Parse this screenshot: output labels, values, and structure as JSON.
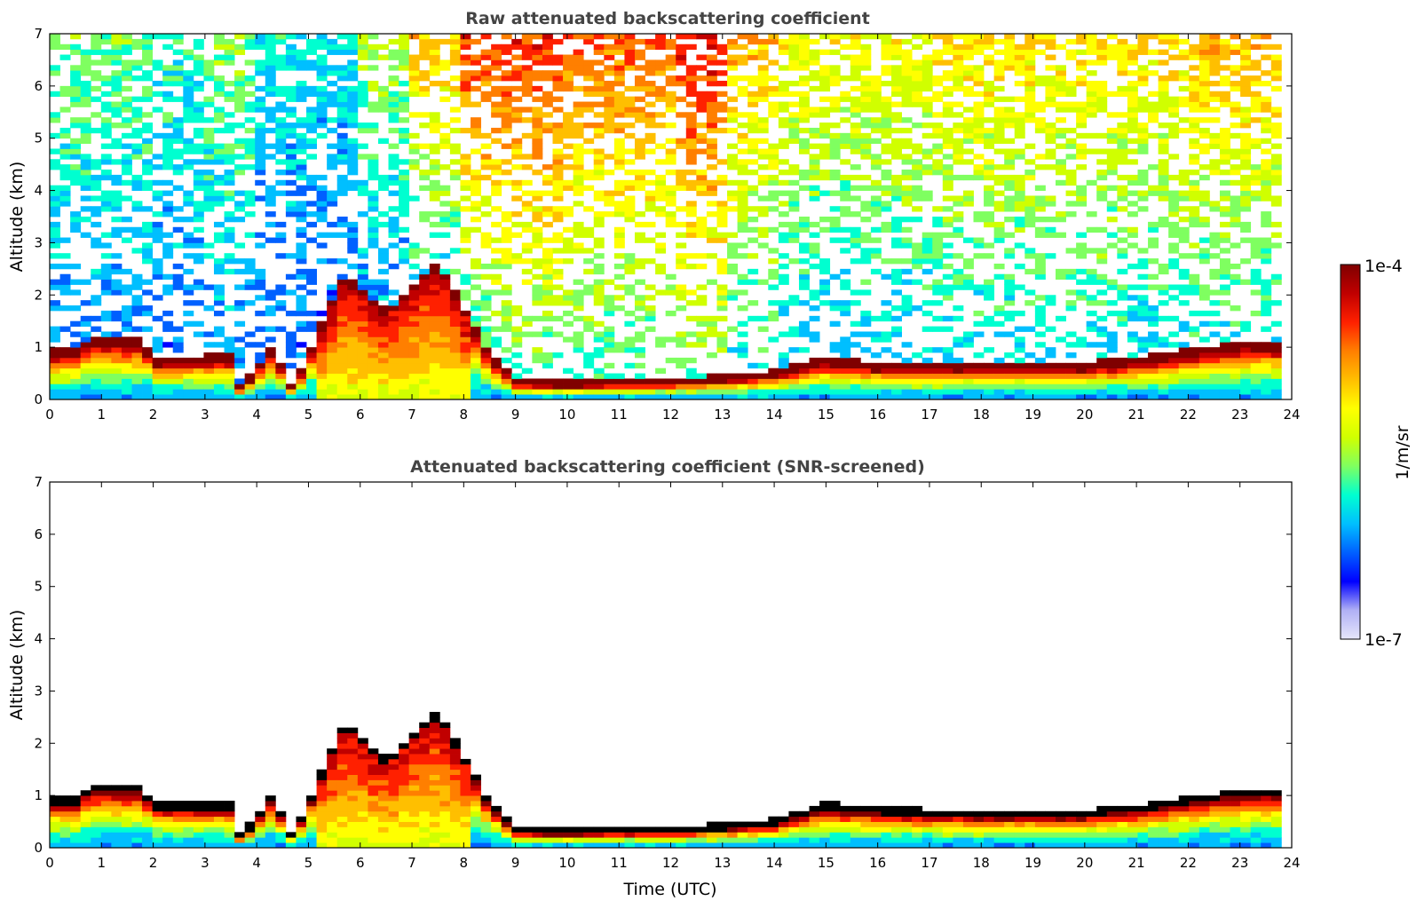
{
  "chart_data": [
    {
      "type": "heatmap",
      "title": "Raw attenuated backscattering coefficient",
      "xlabel": "",
      "ylabel": "Altitude (km)",
      "xlim": [
        0,
        24
      ],
      "ylim": [
        0,
        7
      ],
      "x_ticks": [
        "0",
        "1",
        "2",
        "3",
        "4",
        "5",
        "6",
        "7",
        "8",
        "9",
        "10",
        "11",
        "12",
        "13",
        "14",
        "15",
        "16",
        "17",
        "18",
        "19",
        "20",
        "21",
        "22",
        "23",
        "24"
      ],
      "y_ticks": [
        "0",
        "1",
        "2",
        "3",
        "4",
        "5",
        "6",
        "7"
      ],
      "layer_top_km": [
        [
          0,
          0.85
        ],
        [
          0.5,
          0.85
        ],
        [
          0.8,
          1.1
        ],
        [
          1.8,
          1.05
        ],
        [
          2.0,
          0.7
        ],
        [
          3.5,
          0.75
        ],
        [
          3.7,
          0.1
        ],
        [
          4.3,
          0.95
        ],
        [
          4.7,
          0.15
        ],
        [
          5.7,
          2.3
        ],
        [
          6.5,
          1.6
        ],
        [
          7.5,
          2.5
        ],
        [
          8.5,
          0.8
        ],
        [
          9.0,
          0.3
        ],
        [
          10.0,
          0.25
        ],
        [
          11.0,
          0.3
        ],
        [
          12.0,
          0.3
        ],
        [
          13.0,
          0.35
        ],
        [
          14.0,
          0.45
        ],
        [
          15.0,
          0.7
        ],
        [
          16.0,
          0.6
        ],
        [
          18.0,
          0.6
        ],
        [
          20.0,
          0.6
        ],
        [
          21.0,
          0.7
        ],
        [
          22.0,
          0.85
        ],
        [
          23.0,
          1.0
        ],
        [
          23.8,
          1.0
        ]
      ],
      "noise_level_by_hour": [
        0.35,
        0.35,
        0.3,
        0.35,
        0.25,
        0.25,
        0.4,
        0.6,
        0.75,
        0.75,
        0.7,
        0.7,
        0.8,
        0.6,
        0.5,
        0.5,
        0.5,
        0.55,
        0.55,
        0.55,
        0.55,
        0.55,
        0.6,
        0.6
      ],
      "data_end_time": 23.8
    },
    {
      "type": "heatmap",
      "title": "Attenuated backscattering coefficient (SNR-screened)",
      "xlabel": "Time (UTC)",
      "ylabel": "Altitude (km)",
      "xlim": [
        0,
        24
      ],
      "ylim": [
        0,
        7
      ],
      "x_ticks": [
        "0",
        "1",
        "2",
        "3",
        "4",
        "5",
        "6",
        "7",
        "8",
        "9",
        "10",
        "11",
        "12",
        "13",
        "14",
        "15",
        "16",
        "17",
        "18",
        "19",
        "20",
        "21",
        "22",
        "23",
        "24"
      ],
      "y_ticks": [
        "0",
        "1",
        "2",
        "3",
        "4",
        "5",
        "6",
        "7"
      ],
      "layer_top_km": [
        [
          0,
          0.85
        ],
        [
          0.5,
          0.85
        ],
        [
          0.8,
          1.1
        ],
        [
          1.8,
          1.05
        ],
        [
          2.0,
          0.75
        ],
        [
          3.5,
          0.75
        ],
        [
          3.7,
          0.1
        ],
        [
          4.3,
          0.95
        ],
        [
          4.7,
          0.15
        ],
        [
          5.7,
          2.3
        ],
        [
          6.5,
          1.6
        ],
        [
          7.5,
          2.5
        ],
        [
          8.5,
          0.8
        ],
        [
          9.0,
          0.3
        ],
        [
          10.0,
          0.25
        ],
        [
          11.0,
          0.3
        ],
        [
          12.0,
          0.3
        ],
        [
          13.0,
          0.35
        ],
        [
          14.0,
          0.45
        ],
        [
          15.0,
          0.75
        ],
        [
          16.0,
          0.65
        ],
        [
          18.0,
          0.6
        ],
        [
          20.0,
          0.6
        ],
        [
          21.0,
          0.7
        ],
        [
          22.0,
          0.85
        ],
        [
          23.0,
          1.0
        ],
        [
          23.8,
          1.0
        ]
      ],
      "data_end_time": 23.8
    }
  ],
  "colorbar": {
    "max_label": "1e-4",
    "min_label": "1e-7",
    "unit_label": "1/m/sr",
    "colors": [
      "#e6e6fa",
      "#b0b0f5",
      "#0000ff",
      "#0060ff",
      "#00bfff",
      "#00ffd0",
      "#7fff60",
      "#d0ff00",
      "#ffff00",
      "#ffbf00",
      "#ff7f00",
      "#ff2000",
      "#c00000",
      "#7f0000"
    ]
  }
}
